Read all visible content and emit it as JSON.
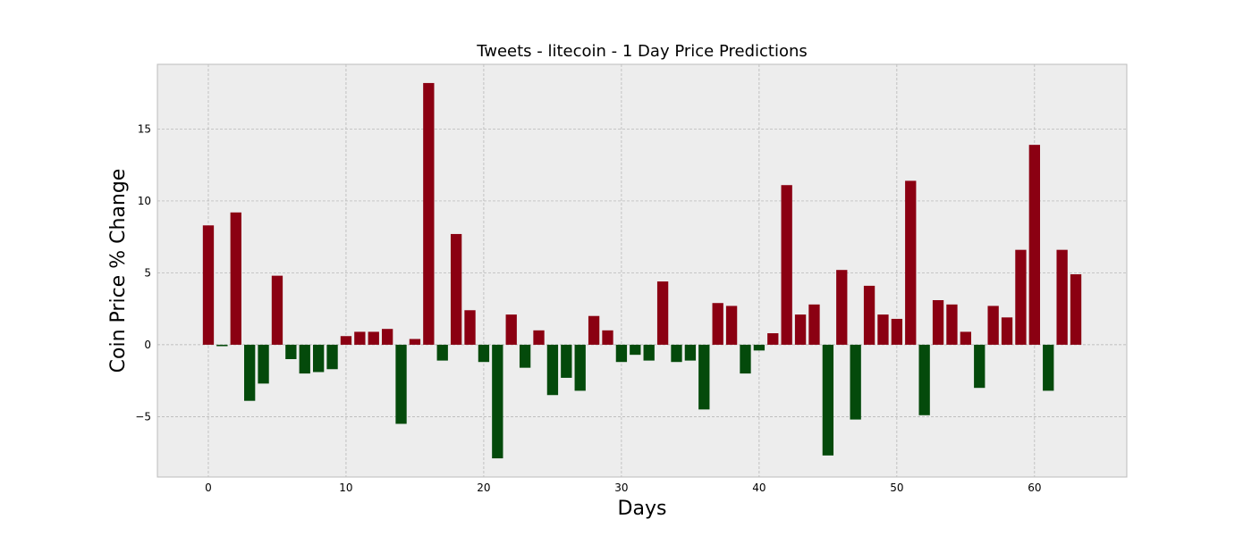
{
  "chart_data": {
    "type": "bar",
    "title": "Tweets - litecoin - 1 Day Price Predictions",
    "xlabel": "Days",
    "ylabel": "Coin Price % Change",
    "xlim": [
      -3.7,
      66.7
    ],
    "ylim": [
      -9.2,
      19.5
    ],
    "xticks": [
      0,
      10,
      20,
      30,
      40,
      50,
      60
    ],
    "yticks": [
      -5,
      0,
      5,
      10,
      15
    ],
    "ytick_labels": [
      "−5",
      "0",
      "5",
      "10",
      "15"
    ],
    "grid": true,
    "legend": "none",
    "colors": {
      "positive": "#8b0012",
      "negative": "#044a0b",
      "plot_bg": "#ededed",
      "grid": "#b0b0b0",
      "spine": "#bcbcbc"
    },
    "x": [
      0,
      1,
      2,
      3,
      4,
      5,
      6,
      7,
      8,
      9,
      10,
      11,
      12,
      13,
      14,
      15,
      16,
      17,
      18,
      19,
      20,
      21,
      22,
      23,
      24,
      25,
      26,
      27,
      28,
      29,
      30,
      31,
      32,
      33,
      34,
      35,
      36,
      37,
      38,
      39,
      40,
      41,
      42,
      43,
      44,
      45,
      46,
      47,
      48,
      49,
      50,
      51,
      52,
      53,
      54,
      55,
      56,
      57,
      58,
      59,
      60,
      61,
      62,
      63
    ],
    "values": [
      8.3,
      -0.1,
      9.2,
      -3.9,
      -2.7,
      4.8,
      -1.0,
      -2.0,
      -1.9,
      -1.7,
      0.6,
      0.9,
      0.9,
      1.1,
      -5.5,
      0.4,
      18.2,
      -1.1,
      7.7,
      2.4,
      -1.2,
      -7.9,
      2.1,
      -1.6,
      1.0,
      -3.5,
      -2.3,
      -3.2,
      2.0,
      1.0,
      -1.2,
      -0.7,
      -1.1,
      4.4,
      -1.2,
      -1.1,
      -4.5,
      2.9,
      2.7,
      -2.0,
      -0.4,
      0.8,
      11.1,
      2.1,
      2.8,
      -7.7,
      5.2,
      -5.2,
      4.1,
      2.1,
      1.8,
      11.4,
      -4.9,
      3.1,
      2.8,
      0.9,
      -3.0,
      2.7,
      1.9,
      6.6,
      13.9,
      -3.2,
      6.6,
      4.9
    ]
  }
}
